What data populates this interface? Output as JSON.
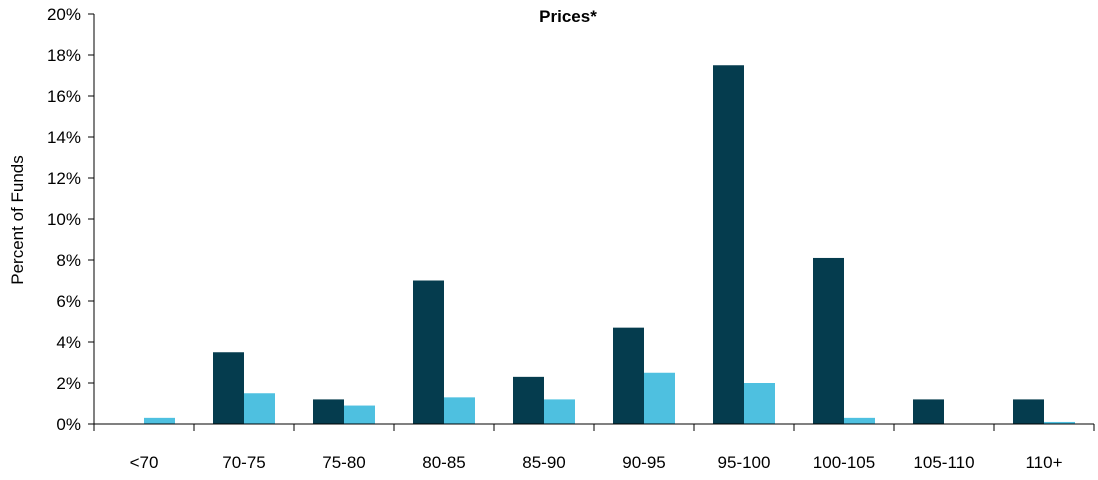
{
  "chart_data": {
    "type": "bar",
    "title": "Prices*",
    "xlabel": "",
    "ylabel": "Percent of Funds",
    "ylim": [
      0,
      20
    ],
    "y_tick_step": 2,
    "y_tick_suffix": "%",
    "grid": false,
    "legend": "none",
    "categories": [
      "<70",
      "70-75",
      "75-80",
      "80-85",
      "85-90",
      "90-95",
      "95-100",
      "100-105",
      "105-110",
      "110+"
    ],
    "series": [
      {
        "color": "#053c4e",
        "values": [
          0,
          3.5,
          1.2,
          7.0,
          2.3,
          4.7,
          17.5,
          8.1,
          1.2,
          1.2
        ]
      },
      {
        "color": "#4ec0e0",
        "values": [
          0.3,
          1.5,
          0.9,
          1.3,
          1.2,
          2.5,
          2.0,
          0.3,
          0,
          0.1
        ]
      }
    ]
  }
}
